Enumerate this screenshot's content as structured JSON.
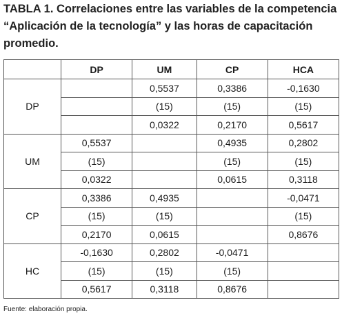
{
  "title": {
    "lines": [
      "TABLA 1. Correlaciones entre las variables de la competencia",
      "“Aplicación de la tecnología” y las horas de capacitación",
      "promedio."
    ]
  },
  "table": {
    "columns": [
      "DP",
      "UM",
      "CP",
      "HCA"
    ],
    "rows": [
      {
        "label": "DP",
        "cells": [
          [
            null,
            "0,5537",
            "0,3386",
            "-0,1630"
          ],
          [
            null,
            "(15)",
            "(15)",
            "(15)"
          ],
          [
            null,
            "0,0322",
            "0,2170",
            "0,5617"
          ]
        ]
      },
      {
        "label": "UM",
        "cells": [
          [
            "0,5537",
            null,
            "0,4935",
            "0,2802"
          ],
          [
            "(15)",
            null,
            "(15)",
            "(15)"
          ],
          [
            "0,0322",
            null,
            "0,0615",
            "0,3118"
          ]
        ]
      },
      {
        "label": "CP",
        "cells": [
          [
            "0,3386",
            "0,4935",
            null,
            "-0,0471"
          ],
          [
            "(15)",
            "(15)",
            null,
            "(15)"
          ],
          [
            "0,2170",
            "0,0615",
            null,
            "0,8676"
          ]
        ]
      },
      {
        "label": "HC",
        "cells": [
          [
            "-0,1630",
            "0,2802",
            "-0,0471",
            null
          ],
          [
            "(15)",
            "(15)",
            "(15)",
            null
          ],
          [
            "0,5617",
            "0,3118",
            "0,8676",
            null
          ]
        ]
      }
    ]
  },
  "footer": "Fuente: elaboración propia."
}
